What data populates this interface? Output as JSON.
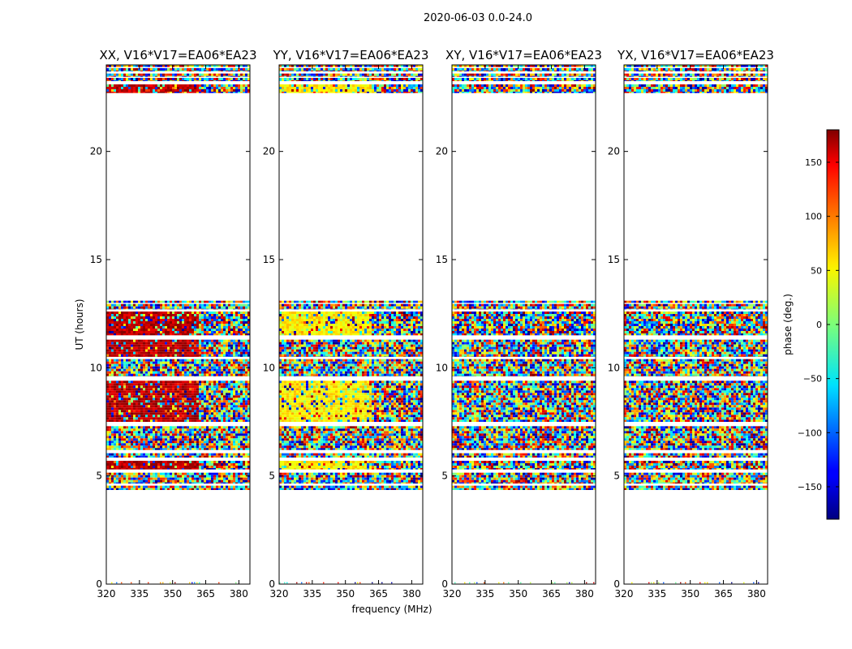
{
  "chart_data": {
    "type": "heatmap",
    "title": "2020-06-03 0.0-24.0",
    "xlabel": "frequency (MHz)",
    "ylabel": "UT (hours)",
    "xlim": [
      320,
      385
    ],
    "ylim": [
      0,
      24
    ],
    "x_ticks": [
      320,
      335,
      350,
      365,
      380
    ],
    "x_tick_labels": [
      "320",
      "335",
      "350",
      "365",
      "380"
    ],
    "y_ticks": [
      0,
      5,
      10,
      15,
      20
    ],
    "y_tick_labels": [
      "0",
      "5",
      "10",
      "15",
      "20"
    ],
    "panels": [
      {
        "name": "XX",
        "title": "XX, V16*V17=EA06*EA23",
        "bias": 160,
        "bias_freq_max": 361,
        "bias_bands": [
          [
            22.8,
            23.2
          ],
          [
            11.5,
            11.7
          ],
          [
            10.5,
            10.7
          ],
          [
            9.0,
            9.3
          ],
          [
            5.2,
            5.4
          ]
        ]
      },
      {
        "name": "YY",
        "title": "YY, V16*V17=EA06*EA23",
        "bias": 50,
        "bias_freq_max": 361,
        "bias_bands": [
          [
            22.8,
            23.2
          ],
          [
            11.5,
            11.7
          ],
          [
            9.0,
            9.3
          ],
          [
            5.2,
            5.4
          ]
        ]
      },
      {
        "name": "XY",
        "title": "XY, V16*V17=EA06*EA23",
        "bias": null,
        "bias_freq_max": null,
        "bias_bands": []
      },
      {
        "name": "YX",
        "title": "YX, V16*V17=EA06*EA23",
        "bias": null,
        "bias_freq_max": null,
        "bias_bands": []
      }
    ],
    "data_bands_hours": [
      [
        4.35,
        4.55
      ],
      [
        4.65,
        5.15
      ],
      [
        5.3,
        5.7
      ],
      [
        5.85,
        6.05
      ],
      [
        6.2,
        7.3
      ],
      [
        7.5,
        9.4
      ],
      [
        9.6,
        10.4
      ],
      [
        10.5,
        11.3
      ],
      [
        11.5,
        12.6
      ],
      [
        12.7,
        12.95
      ],
      [
        13.0,
        13.1
      ],
      [
        22.7,
        23.1
      ],
      [
        23.25,
        23.4
      ],
      [
        23.45,
        23.6
      ],
      [
        23.7,
        23.85
      ],
      [
        23.9,
        24.0
      ]
    ],
    "scattered_rows_hours": [
      0.05
    ],
    "colorbar": {
      "label": "phase (deg.)",
      "vmin": -180,
      "vmax": 180,
      "ticks": [
        -150,
        -100,
        -50,
        0,
        50,
        100,
        150
      ],
      "tick_labels": [
        "−150",
        "−100",
        "−50",
        "0",
        "50",
        "100",
        "150"
      ],
      "colormap": "jet"
    }
  }
}
